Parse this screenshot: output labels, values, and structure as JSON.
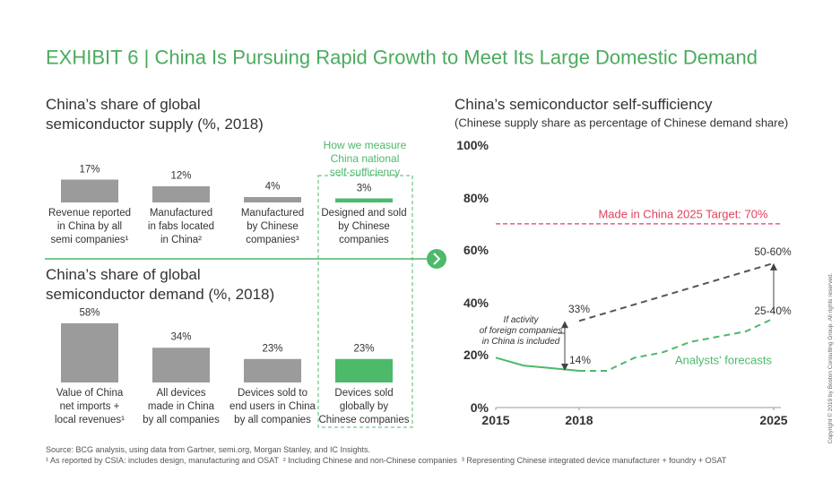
{
  "header": {
    "title": "EXHIBIT 6 | China Is Pursuing Rapid Growth to Meet Its Large Domestic Demand"
  },
  "measure_note": "How we measure\nChina national\nself-sufficiency",
  "chart_data": [
    {
      "type": "bar",
      "title": "China’s share of global\nsemiconductor supply (%, 2018)",
      "categories": [
        "Revenue reported\nin China by all\nsemi companies¹",
        "Manufactured\nin fabs located\nin China²",
        "Manufactured\nby Chinese\ncompanies³",
        "Designed and sold\nby Chinese\ncompanies"
      ],
      "values": [
        17,
        12,
        4,
        3
      ],
      "value_labels": [
        "17%",
        "12%",
        "4%",
        "3%"
      ],
      "colors": [
        "#9b9b9b",
        "#9b9b9b",
        "#9b9b9b",
        "#4cb96b"
      ]
    },
    {
      "type": "bar",
      "title": "China’s share of global\nsemiconductor demand (%, 2018)",
      "categories": [
        "Value of China\nnet imports +\nlocal revenues¹",
        "All devices\nmade in China\nby all companies",
        "Devices sold to\nend users in China\nby all companies",
        "Devices sold\nglobally by\nChinese companies"
      ],
      "values": [
        58,
        34,
        23,
        23
      ],
      "value_labels": [
        "58%",
        "34%",
        "23%",
        "23%"
      ],
      "colors": [
        "#9b9b9b",
        "#9b9b9b",
        "#9b9b9b",
        "#4cb96b"
      ]
    },
    {
      "type": "line",
      "title": "China’s semiconductor self-sufficiency",
      "subtitle": "(Chinese supply share as percentage of Chinese demand share)",
      "xlim": [
        2015,
        2025
      ],
      "xticks": [
        2015,
        2018,
        2025
      ],
      "ylim": [
        0,
        100
      ],
      "yticks": [
        {
          "value": 0,
          "label": "0%"
        },
        {
          "value": 20,
          "label": "20%"
        },
        {
          "value": 40,
          "label": "40%"
        },
        {
          "value": 60,
          "label": "60%"
        },
        {
          "value": 80,
          "label": "80%"
        },
        {
          "value": 100,
          "label": "100%"
        }
      ],
      "series": [
        {
          "color": "#4cb96b",
          "x": [
            2015,
            2016,
            2017,
            2018
          ],
          "values": [
            19,
            16,
            15,
            14
          ]
        },
        {
          "name": "Analysts' forecasts",
          "color": "#4cb96b",
          "dashed": true,
          "x": [
            2018,
            2019,
            2020,
            2021,
            2022,
            2023,
            2024,
            2025
          ],
          "values": [
            14,
            14,
            19,
            21,
            25,
            27,
            29,
            34
          ]
        },
        {
          "color": "#555555",
          "dashed": true,
          "x": [
            2018,
            2025
          ],
          "values": [
            33,
            55
          ]
        }
      ],
      "target": {
        "value": 70,
        "label": "Made in China 2025 Target: 70%",
        "color": "#e2405c"
      },
      "annotations": {
        "high_2018": "33%",
        "low_2018": "14%",
        "high_2025": "50-60%",
        "low_2025": "25-40%",
        "foreign": "If activity\nof foreign companies\nin China is included"
      }
    }
  ],
  "footnotes": {
    "source": "Source: BCG analysis, using data from Gartner, semi.org, Morgan Stanley, and IC Insights.",
    "notes": "¹ As reported by CSIA: includes design, manufacturing and OSAT  ² Including Chinese and non-Chinese companies  ³ Representing Chinese integrated device manufacturer + foundry + OSAT"
  },
  "copyright": "Copyright © 2019 by Boston Consulting Group. All rights reserved."
}
